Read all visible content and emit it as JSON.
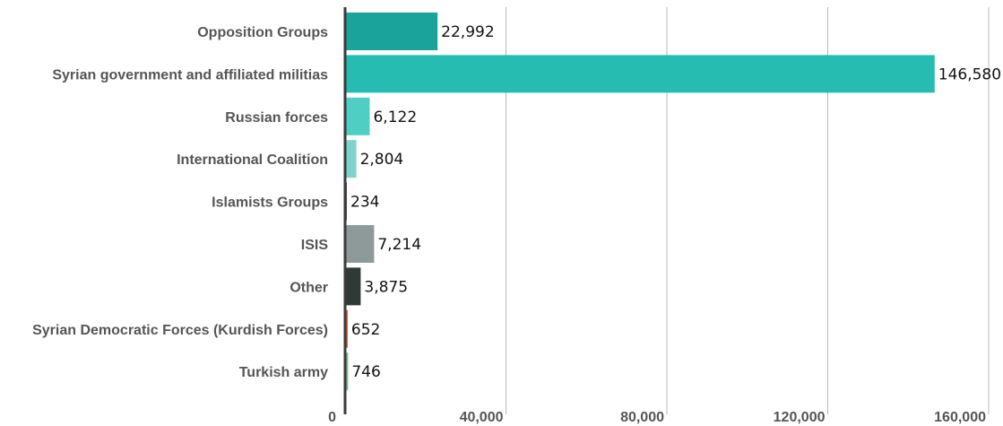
{
  "chart_data": {
    "type": "bar",
    "orientation": "horizontal",
    "categories": [
      "Opposition Groups",
      "Syrian government and affiliated militias",
      "Russian forces",
      "International Coalition",
      "Islamists Groups",
      "ISIS",
      "Other",
      "Syrian Democratic Forces (Kurdish Forces)",
      "Turkish army"
    ],
    "values": [
      22992,
      146580,
      6122,
      2804,
      234,
      7214,
      3875,
      652,
      746
    ],
    "value_labels": [
      "22,992",
      "146,580",
      "6,122",
      "2,804",
      "234",
      "7,214",
      "3,875",
      "652",
      "746"
    ],
    "colors": [
      "#1aa39a",
      "#26bcb1",
      "#4fcfc3",
      "#7fd3cc",
      "#5a5a5a",
      "#8e9a9a",
      "#2f3a37",
      "#e2542a",
      "#7ab88f"
    ],
    "xlim": [
      0,
      160000
    ],
    "xticks": [
      0,
      40000,
      80000,
      120000,
      160000
    ],
    "xtick_labels": [
      "0",
      "40,000",
      "80,000",
      "120,000",
      "160,000"
    ],
    "grid": true,
    "title": "",
    "xlabel": "",
    "ylabel": ""
  }
}
